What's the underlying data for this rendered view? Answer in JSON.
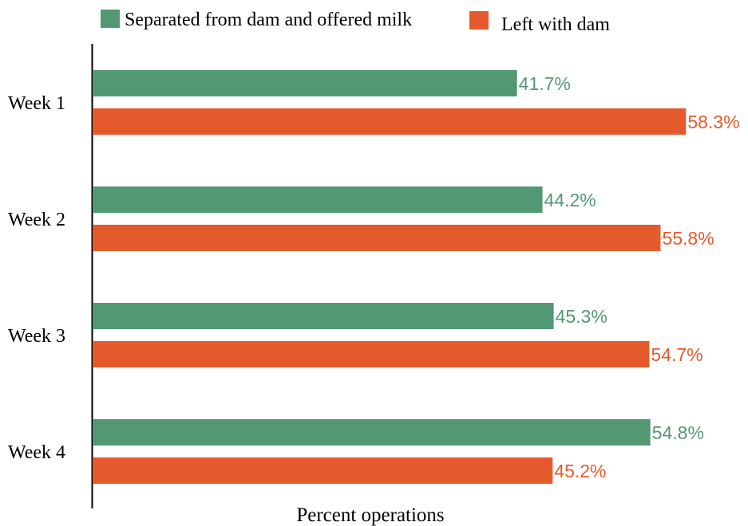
{
  "chart_data": {
    "type": "bar",
    "orientation": "horizontal",
    "categories": [
      "Week 1",
      "Week 2",
      "Week 3",
      "Week 4"
    ],
    "series": [
      {
        "name": "Separated from dam and offered milk",
        "color": "#529873",
        "values": [
          41.7,
          44.2,
          45.3,
          54.8
        ],
        "labels": [
          "41.7%",
          "44.2%",
          "45.3%",
          "54.8%"
        ]
      },
      {
        "name": "Left with dam",
        "color": "#E55A2C",
        "values": [
          58.3,
          55.8,
          54.7,
          45.2
        ],
        "labels": [
          "58.3%",
          "55.8%",
          "54.7%",
          "45.2%"
        ]
      }
    ],
    "xlabel": "Percent operations",
    "xlim": [
      0,
      70
    ],
    "grid": false,
    "legend": "top"
  }
}
